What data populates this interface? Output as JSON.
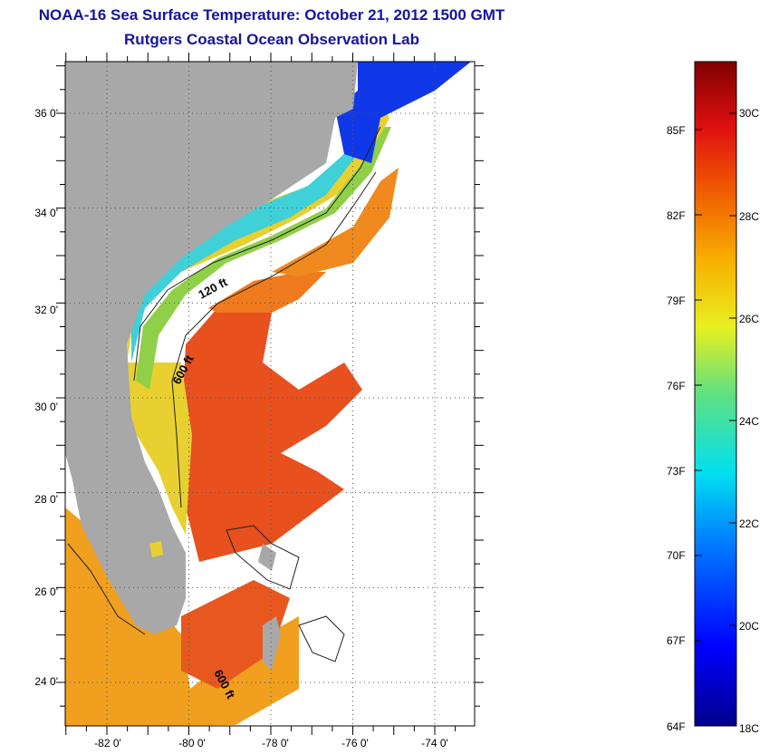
{
  "title": "NOAA-16 Sea Surface Temperature:  October 21, 2012 1500 GMT",
  "subtitle": "Rutgers Coastal Ocean Observation Lab",
  "map": {
    "latitude_labels": [
      {
        "label": "36 0'",
        "lat": 36
      },
      {
        "label": "34 0'",
        "lat": 34
      },
      {
        "label": "32 0'",
        "lat": 32
      },
      {
        "label": "30 0'",
        "lat": 30
      },
      {
        "label": "28 0'",
        "lat": 28
      },
      {
        "label": "26 0'",
        "lat": 26
      },
      {
        "label": "24 0'",
        "lat": 24
      }
    ],
    "longitude_labels": [
      {
        "label": "-82 0'",
        "lon": -82
      },
      {
        "label": "-80 0'",
        "lon": -80
      },
      {
        "label": "-78 0'",
        "lon": -78
      },
      {
        "label": "-76 0'",
        "lon": -76
      },
      {
        "label": "-74 0'",
        "lon": -74
      }
    ],
    "contour_labels": {
      "c120": "120 ft",
      "c600a": "600 ft",
      "c600b": "600 ft"
    },
    "colors": {
      "land": "#a8a8a8",
      "cloud": "#ffffff",
      "warm": "#e8461e",
      "orange": "#f08a1e",
      "yellow": "#f0d020",
      "green": "#8ad048",
      "cyan": "#30d8e0",
      "blue": "#1030e8"
    }
  },
  "colorbar": {
    "fahrenheit": [
      "85F",
      "82F",
      "79F",
      "76F",
      "73F",
      "70F",
      "67F",
      "64F"
    ],
    "celsius": [
      "30C",
      "28C",
      "26C",
      "24C",
      "22C",
      "20C",
      "18C"
    ],
    "range_c": [
      18,
      31
    ]
  }
}
